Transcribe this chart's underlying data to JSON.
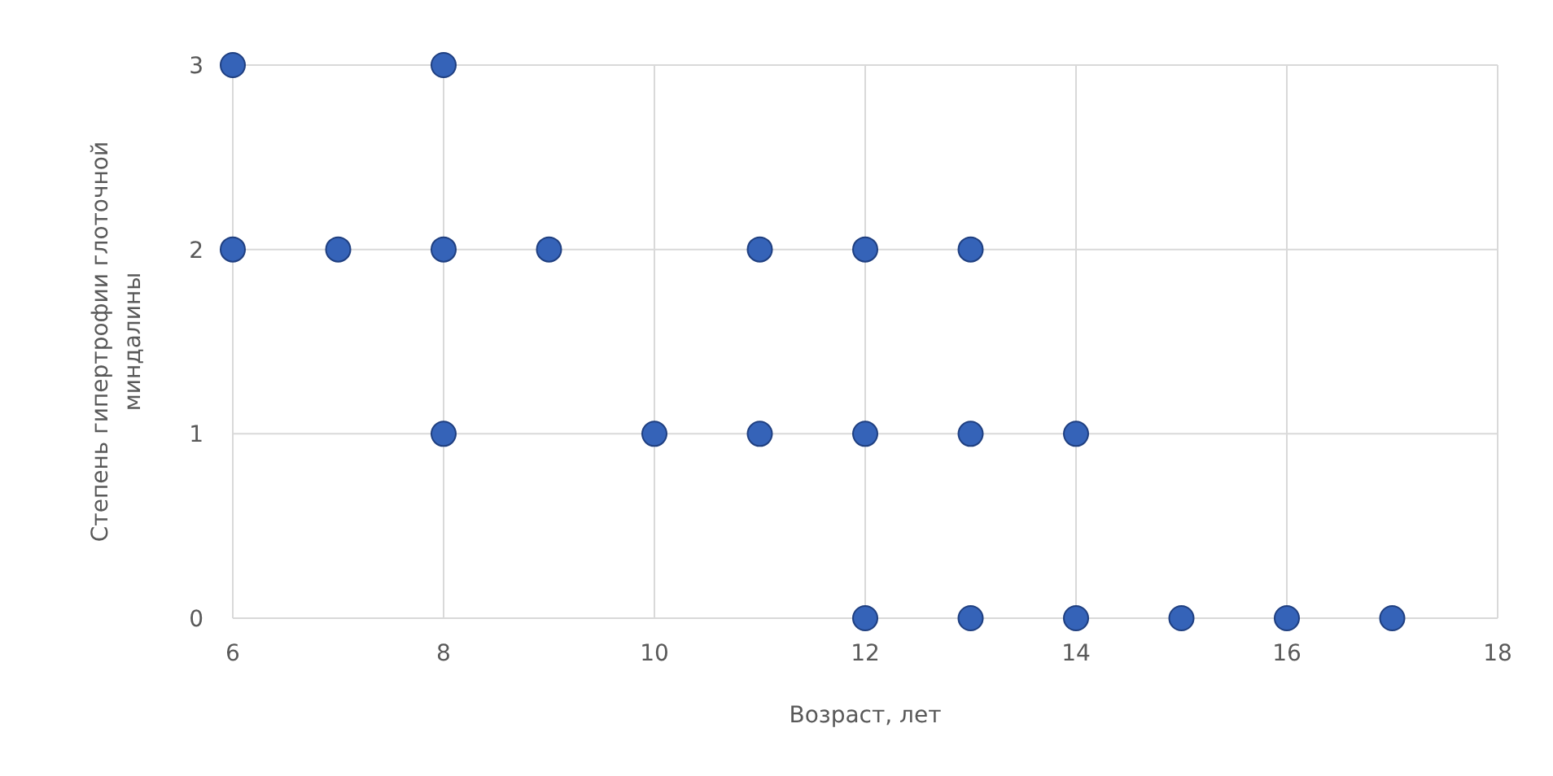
{
  "chart_data": {
    "type": "scatter",
    "xlabel": "Возраст, лет",
    "ylabel": "Степень гипертрофии глоточной миндалины",
    "x": [
      6,
      8,
      6,
      7,
      8,
      9,
      11,
      12,
      13,
      8,
      10,
      11,
      12,
      13,
      14,
      12,
      13,
      14,
      15,
      16,
      17
    ],
    "series": [
      {
        "color": "#3563b8",
        "values": [
          3,
          3,
          2,
          2,
          2,
          2,
          2,
          2,
          2,
          1,
          1,
          1,
          1,
          1,
          1,
          0,
          0,
          0,
          0,
          0,
          0
        ]
      }
    ],
    "xlim": [
      6,
      18
    ],
    "xticks": [
      6,
      8,
      10,
      12,
      14,
      16,
      18
    ],
    "ylim": [
      0,
      3
    ],
    "yticks": [
      0,
      1,
      2,
      3
    ],
    "grid": true,
    "marker": "circle"
  }
}
